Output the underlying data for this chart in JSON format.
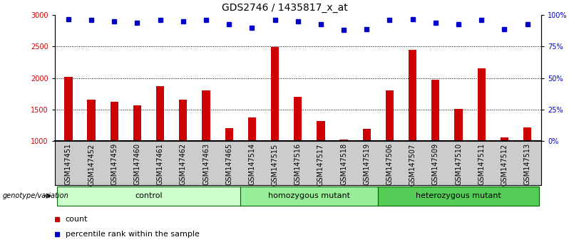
{
  "title": "GDS2746 / 1435817_x_at",
  "categories": [
    "GSM147451",
    "GSM147452",
    "GSM147459",
    "GSM147460",
    "GSM147461",
    "GSM147462",
    "GSM147463",
    "GSM147465",
    "GSM147514",
    "GSM147515",
    "GSM147516",
    "GSM147517",
    "GSM147518",
    "GSM147519",
    "GSM147506",
    "GSM147507",
    "GSM147509",
    "GSM147510",
    "GSM147511",
    "GSM147512",
    "GSM147513"
  ],
  "counts": [
    2020,
    1660,
    1620,
    1570,
    1870,
    1660,
    1810,
    1210,
    1370,
    2490,
    1700,
    1320,
    1020,
    1200,
    1800,
    2450,
    1970,
    1510,
    2150,
    1060,
    1220
  ],
  "percentile_ranks": [
    97,
    96,
    95,
    94,
    96,
    95,
    96,
    93,
    90,
    96,
    95,
    93,
    88,
    89,
    96,
    97,
    94,
    93,
    96,
    89,
    93
  ],
  "groups": [
    {
      "label": "control",
      "start": 0,
      "end": 7,
      "color": "#ccffcc"
    },
    {
      "label": "homozygous mutant",
      "start": 8,
      "end": 13,
      "color": "#99ee99"
    },
    {
      "label": "heterozygous mutant",
      "start": 14,
      "end": 20,
      "color": "#55cc55"
    }
  ],
  "bar_color": "#cc0000",
  "dot_color": "#0000cc",
  "ylim_left": [
    1000,
    3000
  ],
  "ylim_right": [
    0,
    100
  ],
  "yticks_left": [
    1000,
    1500,
    2000,
    2500,
    3000
  ],
  "yticks_right": [
    0,
    25,
    50,
    75,
    100
  ],
  "dotted_lines": [
    1500,
    2000,
    2500
  ],
  "background_color": "#ffffff",
  "plot_bg_color": "#ffffff",
  "xticklabel_bg": "#cccccc",
  "title_fontsize": 10,
  "tick_fontsize": 7,
  "label_fontsize": 8
}
